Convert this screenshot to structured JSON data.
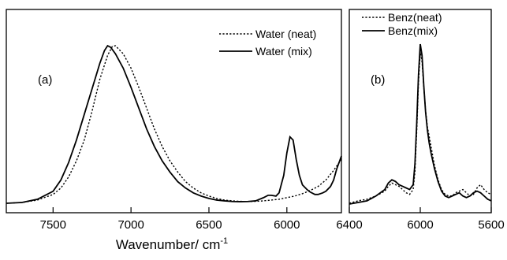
{
  "chart_data": [
    {
      "type": "line",
      "panel_label": "(a)",
      "xlabel_main": "Wavenumber/ cm",
      "xlabel_sup": "-1",
      "xlim": [
        7800,
        5650
      ],
      "x_reversed": true,
      "ylabel": "",
      "yticks_shown": false,
      "xticks": [
        "7500",
        "7000",
        "6500",
        "6000"
      ],
      "xtick_values": [
        7500,
        7000,
        6500,
        6000
      ],
      "legend_position": "top-right",
      "series": [
        {
          "name": "Water (neat)",
          "style": "dotted",
          "x": [
            7800,
            7700,
            7600,
            7500,
            7450,
            7400,
            7350,
            7300,
            7250,
            7200,
            7150,
            7120,
            7100,
            7050,
            7000,
            6950,
            6900,
            6850,
            6800,
            6750,
            6700,
            6650,
            6600,
            6550,
            6500,
            6450,
            6400,
            6350,
            6300,
            6250,
            6200,
            6150,
            6100,
            6050,
            6000,
            5950,
            5900,
            5850,
            5800,
            5750,
            5700,
            5650
          ],
          "y": [
            0.005,
            0.01,
            0.025,
            0.06,
            0.1,
            0.17,
            0.27,
            0.4,
            0.58,
            0.78,
            0.93,
            0.985,
            0.99,
            0.94,
            0.85,
            0.73,
            0.6,
            0.47,
            0.36,
            0.27,
            0.2,
            0.14,
            0.1,
            0.07,
            0.05,
            0.035,
            0.025,
            0.02,
            0.017,
            0.016,
            0.017,
            0.02,
            0.025,
            0.03,
            0.04,
            0.05,
            0.065,
            0.085,
            0.11,
            0.15,
            0.21,
            0.28
          ]
        },
        {
          "name": "Water (mix)",
          "style": "solid",
          "x": [
            7800,
            7700,
            7600,
            7500,
            7450,
            7400,
            7350,
            7300,
            7250,
            7200,
            7170,
            7150,
            7130,
            7100,
            7050,
            7000,
            6950,
            6900,
            6850,
            6800,
            6750,
            6700,
            6650,
            6600,
            6550,
            6500,
            6450,
            6400,
            6350,
            6300,
            6250,
            6200,
            6150,
            6120,
            6100,
            6070,
            6050,
            6020,
            6000,
            5980,
            5960,
            5940,
            5920,
            5900,
            5870,
            5850,
            5820,
            5800,
            5770,
            5750,
            5720,
            5700,
            5680,
            5650
          ],
          "y": [
            0.005,
            0.01,
            0.03,
            0.08,
            0.15,
            0.26,
            0.4,
            0.56,
            0.72,
            0.88,
            0.96,
            0.99,
            0.98,
            0.94,
            0.85,
            0.73,
            0.6,
            0.47,
            0.36,
            0.27,
            0.2,
            0.14,
            0.1,
            0.07,
            0.05,
            0.035,
            0.025,
            0.02,
            0.016,
            0.015,
            0.016,
            0.02,
            0.04,
            0.055,
            0.055,
            0.05,
            0.07,
            0.18,
            0.32,
            0.42,
            0.4,
            0.28,
            0.18,
            0.12,
            0.09,
            0.075,
            0.06,
            0.06,
            0.07,
            0.08,
            0.11,
            0.15,
            0.22,
            0.3
          ]
        }
      ]
    },
    {
      "type": "line",
      "panel_label": "(b)",
      "xlim": [
        6400,
        5600
      ],
      "x_reversed": true,
      "ylabel": "",
      "yticks_shown": false,
      "xticks": [
        "6400",
        "6000",
        "5600"
      ],
      "xtick_values": [
        6400,
        6000,
        5600
      ],
      "legend_position": "top",
      "series": [
        {
          "name": "Benz(neat)",
          "style": "dotted",
          "x": [
            6400,
            6350,
            6300,
            6250,
            6200,
            6180,
            6160,
            6140,
            6120,
            6100,
            6080,
            6060,
            6040,
            6030,
            6020,
            6010,
            6000,
            5990,
            5980,
            5970,
            5960,
            5950,
            5940,
            5920,
            5900,
            5880,
            5860,
            5840,
            5820,
            5800,
            5780,
            5760,
            5740,
            5720,
            5700,
            5680,
            5660,
            5640,
            5620,
            5600
          ],
          "y": [
            0.005,
            0.02,
            0.03,
            0.05,
            0.08,
            0.11,
            0.13,
            0.12,
            0.11,
            0.09,
            0.07,
            0.06,
            0.09,
            0.2,
            0.45,
            0.75,
            0.94,
            0.88,
            0.72,
            0.58,
            0.48,
            0.42,
            0.36,
            0.24,
            0.15,
            0.09,
            0.06,
            0.05,
            0.05,
            0.07,
            0.08,
            0.09,
            0.07,
            0.05,
            0.06,
            0.1,
            0.12,
            0.09,
            0.07,
            0.06
          ]
        },
        {
          "name": "Benz(mix)",
          "style": "solid",
          "x": [
            6400,
            6350,
            6300,
            6250,
            6200,
            6180,
            6160,
            6140,
            6120,
            6100,
            6080,
            6060,
            6040,
            6030,
            6020,
            6010,
            6000,
            5990,
            5980,
            5970,
            5960,
            5950,
            5940,
            5920,
            5900,
            5880,
            5860,
            5840,
            5820,
            5800,
            5780,
            5760,
            5740,
            5720,
            5700,
            5680,
            5660,
            5640,
            5620,
            5600
          ],
          "y": [
            0.0,
            0.01,
            0.02,
            0.05,
            0.09,
            0.13,
            0.15,
            0.14,
            0.12,
            0.11,
            0.1,
            0.09,
            0.12,
            0.25,
            0.5,
            0.8,
            0.99,
            0.92,
            0.73,
            0.57,
            0.46,
            0.38,
            0.32,
            0.22,
            0.14,
            0.08,
            0.05,
            0.04,
            0.05,
            0.06,
            0.07,
            0.05,
            0.04,
            0.05,
            0.07,
            0.08,
            0.07,
            0.05,
            0.03,
            0.02
          ]
        }
      ]
    }
  ]
}
